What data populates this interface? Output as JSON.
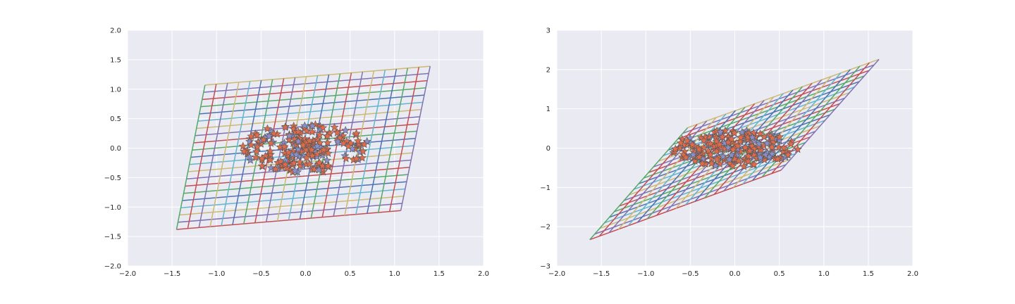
{
  "figure": {
    "background": "#ffffff",
    "axes_facecolor": "#EAEAF2",
    "grid_color": "#ffffff",
    "palette": [
      "#4C72B0",
      "#55A868",
      "#C44E52",
      "#8172B2",
      "#CCB974",
      "#64B5CD"
    ],
    "marker_face": "#E06B4A",
    "marker_edge": "#555555",
    "marker_alt_face": "#8A8FC8"
  },
  "chart_data": [
    {
      "type": "line",
      "title": "",
      "xlabel": "",
      "ylabel": "",
      "xlim": [
        -2.0,
        2.0
      ],
      "ylim": [
        -2.0,
        2.0
      ],
      "xticks": [
        "−2.0",
        "−1.5",
        "−1.0",
        "−0.5",
        "0.0",
        "0.5",
        "1.0",
        "1.5",
        "2.0"
      ],
      "yticks": [
        "−2.0",
        "−1.5",
        "−1.0",
        "−0.5",
        "0.0",
        "0.5",
        "1.0",
        "1.5",
        "2.0"
      ],
      "xtick_values": [
        -2.0,
        -1.5,
        -1.0,
        -0.5,
        0.0,
        0.5,
        1.0,
        1.5,
        2.0
      ],
      "ytick_values": [
        -2.0,
        -1.5,
        -1.0,
        -0.5,
        0.0,
        0.5,
        1.0,
        1.5,
        2.0
      ],
      "grid": true,
      "transformed_grid": {
        "corners": [
          [
            -1.45,
            -1.38
          ],
          [
            1.07,
            -1.06
          ],
          [
            1.4,
            1.39
          ],
          [
            -1.13,
            1.07
          ]
        ],
        "divisions": 20
      },
      "scatter": {
        "marker": "star",
        "count": 220,
        "center": [
          0.0,
          0.0
        ],
        "ring_radius": [
          0.72,
          0.42
        ],
        "core_radius": [
          0.3,
          0.18
        ]
      }
    },
    {
      "type": "line",
      "title": "",
      "xlabel": "",
      "ylabel": "",
      "xlim": [
        -2.0,
        2.0
      ],
      "ylim": [
        -3.0,
        3.0
      ],
      "xticks": [
        "−2.0",
        "−1.5",
        "−1.0",
        "−0.5",
        "0.0",
        "0.5",
        "1.0",
        "1.5",
        "2.0"
      ],
      "yticks": [
        "−3",
        "−2",
        "−1",
        "0",
        "1",
        "2",
        "3"
      ],
      "xtick_values": [
        -2.0,
        -1.5,
        -1.0,
        -0.5,
        0.0,
        0.5,
        1.0,
        1.5,
        2.0
      ],
      "ytick_values": [
        -3,
        -2,
        -1,
        0,
        1,
        2,
        3
      ],
      "grid": true,
      "transformed_grid": {
        "corners": [
          [
            -1.63,
            -2.33
          ],
          [
            0.52,
            -0.56
          ],
          [
            1.62,
            2.26
          ],
          [
            -0.53,
            0.52
          ]
        ],
        "divisions": 20
      },
      "scatter": {
        "marker": "star",
        "count": 220,
        "center": [
          0.0,
          0.0
        ],
        "ring_radius": [
          0.72,
          0.48
        ],
        "core_radius": [
          0.35,
          0.3
        ]
      }
    }
  ]
}
